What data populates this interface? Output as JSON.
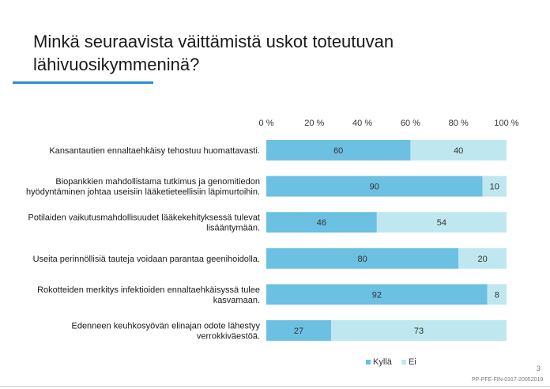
{
  "title": "Minkä seuraavista väittämistä uskot toteutuvan lähivuosikymmeninä?",
  "colors": {
    "kylla": "#6cc0e2",
    "ei": "#bfe7ef",
    "accent": "#2a8fd0"
  },
  "page_number": "3",
  "doc_code": "PP-PFE-FIN-0317-20052019",
  "chart_data": {
    "type": "bar",
    "orientation": "horizontal",
    "stacked": true,
    "x_ticks": [
      "0 %",
      "20 %",
      "40 %",
      "60 %",
      "80 %",
      "100 %"
    ],
    "xlim": [
      0,
      100
    ],
    "legend_position": "bottom",
    "categories": [
      [
        "Kansantautien ennaltaehkäisy tehostuu huomattavasti."
      ],
      [
        "Biopankkien mahdollistama tutkimus ja genomitiedon",
        "hyödyntäminen johtaa useisiin lääketieteellisiin läpimurtoihin."
      ],
      [
        "Potilaiden vaikutusmahdollisuudet lääkekehityksessä tulevat",
        "lisääntymään."
      ],
      [
        "Useita perinnöllisiä tauteja voidaan parantaa geenihoidolla."
      ],
      [
        "Rokotteiden merkitys infektioiden ennaltaehkäisyssä tulee",
        "kasvamaan."
      ],
      [
        "Edenneen keuhkosyövän elinajan odote lähestyy",
        "verrokkiväestöä."
      ]
    ],
    "series": [
      {
        "name": "Kyllä",
        "values": [
          60,
          90,
          46,
          80,
          92,
          27
        ]
      },
      {
        "name": "Ei",
        "values": [
          40,
          10,
          54,
          20,
          8,
          73
        ]
      }
    ]
  }
}
